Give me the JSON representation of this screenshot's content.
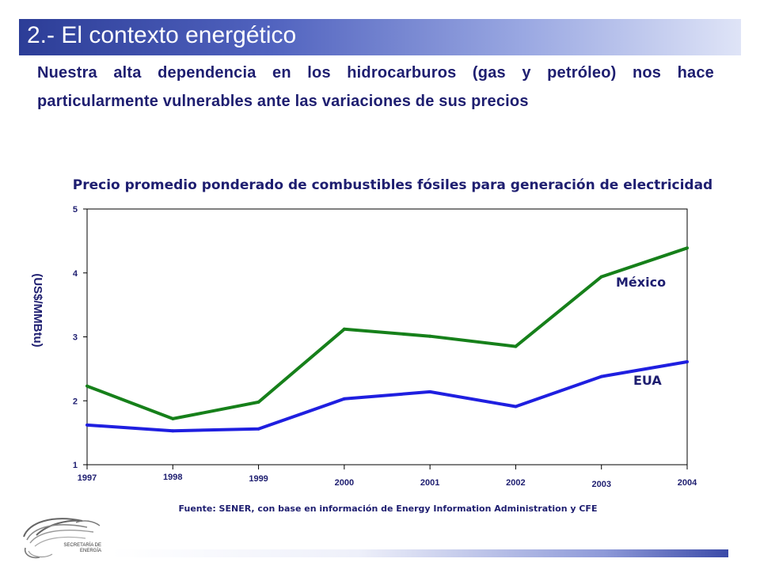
{
  "slide": {
    "title": "2.- El contexto energético",
    "subtitle_line1": "Nuestra alta dependencia en los hidrocarburos (gas y petróleo) nos hace",
    "subtitle_line2": "particularmente vulnerables ante las variaciones de sus precios",
    "source": "Fuente: SENER, con base en información de Energy Information Administration y CFE",
    "logo_line1": "SECRETARÍA DE",
    "logo_line2": "ENERGÍA"
  },
  "colors": {
    "mexico": "#16801a",
    "eua": "#1f1fe0",
    "text": "#1e1e70",
    "axis": "#000000"
  },
  "chart_data": {
    "type": "line",
    "title": "Precio promedio ponderado de combustibles fósiles para generación de electricidad",
    "xlabel": "",
    "ylabel": "(US$/MMBtu)",
    "x": [
      "1997",
      "1998",
      "1999",
      "2000",
      "2001",
      "2002",
      "2003",
      "2004"
    ],
    "ylim": [
      1,
      5
    ],
    "yticks": [
      "1",
      "2",
      "3",
      "4",
      "5"
    ],
    "grid": false,
    "series": [
      {
        "name": "México",
        "color": "#16801a",
        "values": [
          2.23,
          1.72,
          1.98,
          3.12,
          3.01,
          2.85,
          3.94,
          4.39
        ]
      },
      {
        "name": "EUA",
        "color": "#1f1fe0",
        "values": [
          1.62,
          1.53,
          1.56,
          2.03,
          2.14,
          1.91,
          2.38,
          2.61
        ]
      }
    ]
  }
}
